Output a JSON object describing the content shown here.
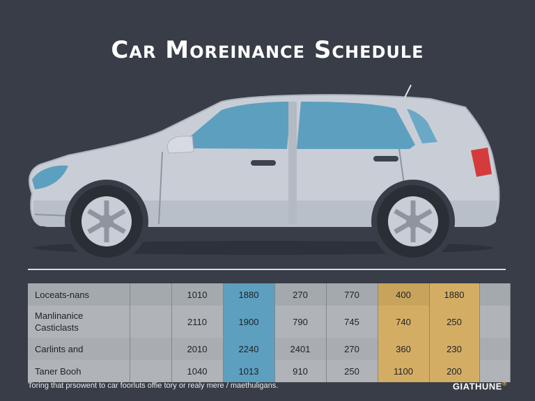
{
  "title": "Car Moreinance Schedule",
  "table": {
    "rows": [
      {
        "label": "Loceats-nans",
        "values": [
          "",
          "1010",
          "1880",
          "270",
          "770",
          "400",
          "1880",
          ""
        ]
      },
      {
        "label": "Manlinanice Casticlasts",
        "values": [
          "",
          "2110",
          "1900",
          "790",
          "745",
          "740",
          "250",
          ""
        ]
      },
      {
        "label": "Carlints and",
        "values": [
          "",
          "2010",
          "2240",
          "2401",
          "270",
          "360",
          "230",
          ""
        ]
      },
      {
        "label": "Taner Booh",
        "values": [
          "",
          "1040",
          "1013",
          "910",
          "250",
          "1100",
          "200",
          ""
        ]
      }
    ]
  },
  "footer": {
    "note": "Toring that prsowent to car foorluts offie tory or realy mere / maethuligans.",
    "brand": "GIATHUNE",
    "brand_mark": "®"
  },
  "colors": {
    "background": "#383d47",
    "table_grey": "#a7acb1",
    "table_blue": "#5d9fbf",
    "table_gold": "#c8a35c",
    "car_body": "#c9ced6",
    "car_window": "#5d9fbf",
    "taillight": "#d53b3b"
  }
}
